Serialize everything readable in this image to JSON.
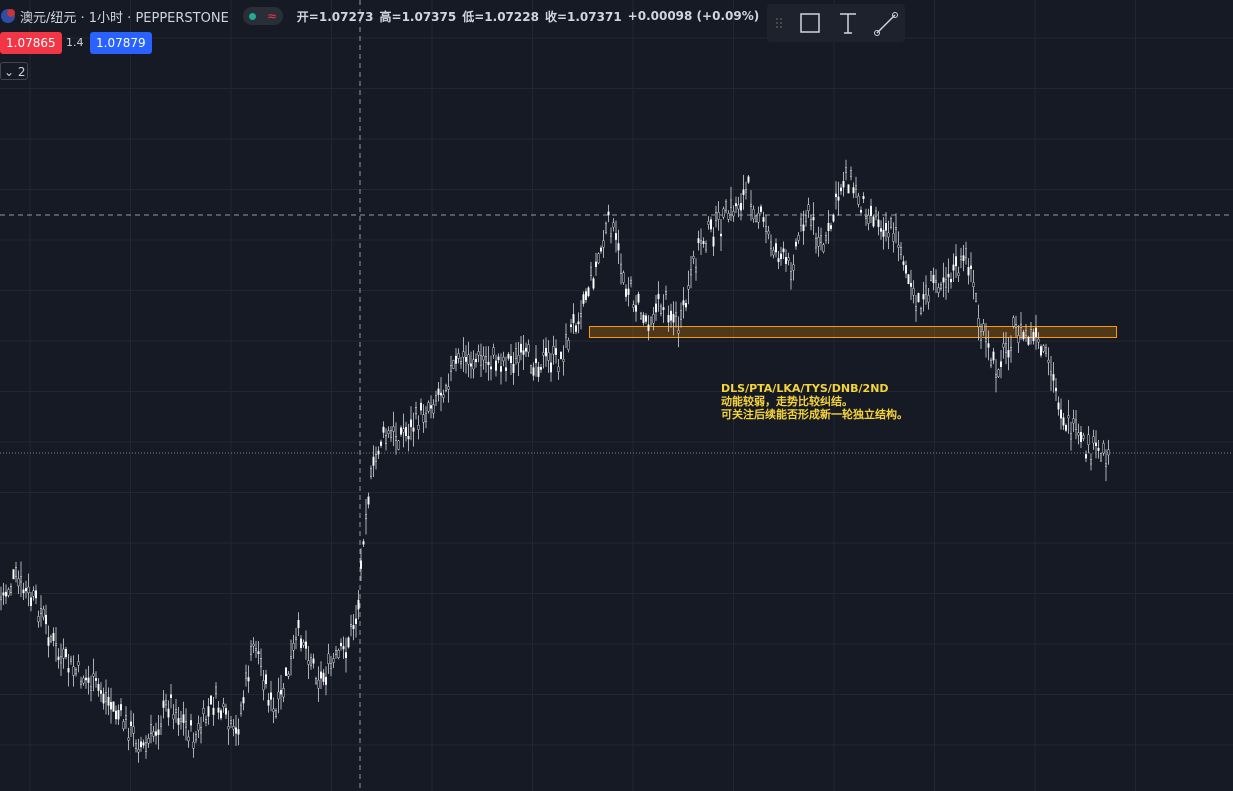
{
  "header": {
    "symbol": "澳元/纽元 · 1小时 · PEPPERSTONE",
    "ohlc": [
      "开=1.07273",
      "高=1.07375",
      "低=1.07228",
      "收=1.07371"
    ],
    "change": "+0.00098 (+0.09%)"
  },
  "quote": {
    "bid": "1.07865",
    "spread": "1.4",
    "ask": "1.07879"
  },
  "indicators": {
    "toggle": "2"
  },
  "annotation": {
    "lines": [
      "DLS/PTA/LKA/TYS/DNB/2ND",
      "动能较弱，走势比较纠结。",
      "可关注后续能否形成新一轮独立结构。"
    ]
  }
}
